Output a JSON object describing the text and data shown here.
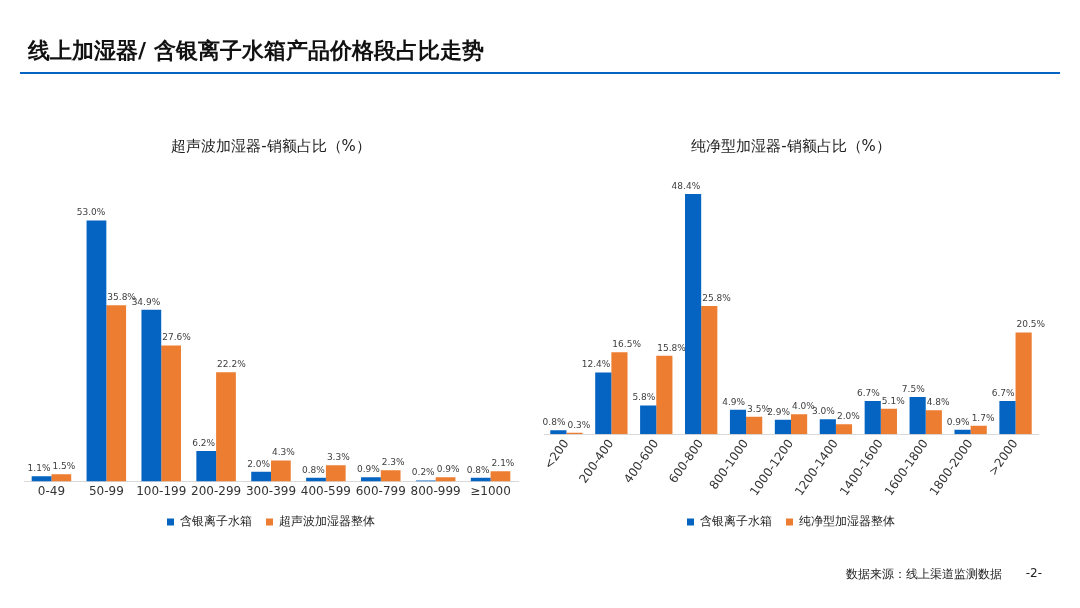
{
  "chart_data": [
    {
      "type": "bar",
      "title": "超声波加湿器-销额占比（%）",
      "annotations": [
        "线上加湿器/ 含银离子水箱产品价格段占比走势"
      ],
      "categories": [
        "0-49",
        "50-99",
        "100-199",
        "200-299",
        "300-399",
        "400-599",
        "600-799",
        "800-999",
        "≥1000"
      ],
      "series": [
        {
          "name": "含银离子水箱",
          "color": "#0563c1",
          "values": [
            1.1,
            53.0,
            34.9,
            6.2,
            2.0,
            0.8,
            0.9,
            0.2,
            0.8
          ],
          "value_labels": [
            "1.1%",
            "53.0%",
            "34.9%",
            "6.2%",
            "2.0%",
            "0.8%",
            "0.9%",
            "0.2%",
            "0.8%"
          ]
        },
        {
          "name": "超声波加湿器整体",
          "color": "#ed7d31",
          "values": [
            1.5,
            35.8,
            27.6,
            22.2,
            4.3,
            3.3,
            2.3,
            0.9,
            2.1
          ],
          "value_labels": [
            "1.5%",
            "35.8%",
            "27.6%",
            "22.2%",
            "4.3%",
            "3.3%",
            "2.3%",
            "0.9%",
            "2.1%"
          ]
        }
      ],
      "legend": "bottom",
      "tick_labels": "x",
      "grid": false
    },
    {
      "type": "bar",
      "title": "纯净型加湿器-销额占比（%）",
      "annotations": [
        "数据来源：线上渠道监测数据",
        "-2-"
      ],
      "categories": [
        "<200",
        "200-400",
        "400-600",
        "600-800",
        "800-1000",
        "1000-1200",
        "1200-1400",
        "1400-1600",
        "1600-1800",
        "1800-2000",
        ">2000"
      ],
      "series": [
        {
          "name": "含银离子水箱",
          "color": "#0563c1",
          "values": [
            0.8,
            12.4,
            5.8,
            48.4,
            4.9,
            2.9,
            3.0,
            6.7,
            7.5,
            0.9,
            6.7
          ],
          "value_labels": [
            "0.8%",
            "12.4%",
            "5.8%",
            "48.4%",
            "4.9%",
            "2.9%",
            "3.0%",
            "6.7%",
            "7.5%",
            "0.9%",
            "6.7%"
          ]
        },
        {
          "name": "纯净型加湿器整体",
          "color": "#ed7d31",
          "values": [
            0.3,
            16.5,
            15.8,
            25.8,
            3.5,
            4.0,
            2.0,
            5.1,
            4.8,
            1.7,
            20.5
          ],
          "value_labels": [
            "0.3%",
            "16.5%",
            "15.8%",
            "25.8%",
            "3.5%",
            "4.0%",
            "2.0%",
            "5.1%",
            "4.8%",
            "1.7%",
            "20.5%"
          ]
        }
      ],
      "legend": "bottom",
      "tick_labels": "x",
      "grid": false
    }
  ]
}
